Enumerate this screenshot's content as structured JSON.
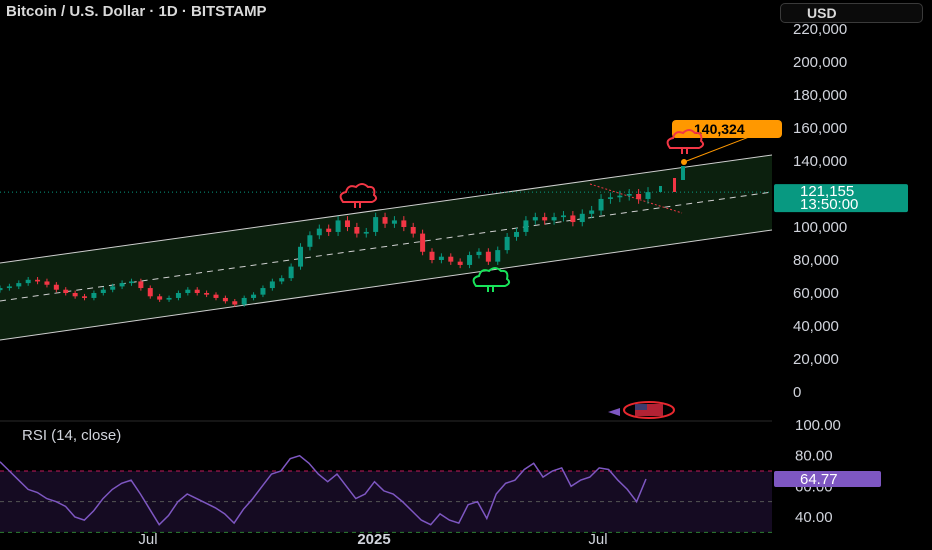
{
  "header": {
    "title": "Bitcoin / U.S. Dollar · 1D · BITSTAMP",
    "currency": "USD"
  },
  "colors": {
    "up": "#089981",
    "down": "#f23645",
    "rsi_line": "#7e57c2",
    "channel_fill": "#0d2410",
    "target_label": "#ff9800",
    "price_badge": "#089981",
    "rsi_badge": "#7e57c2"
  },
  "price_panel": {
    "current_price": "121,155",
    "countdown": "13:50:00",
    "target_label": "140,324"
  },
  "rsi_panel": {
    "label": "RSI (14, close)",
    "current_value": "64.77",
    "y_ticks": [
      "100.00",
      "80.00",
      "60.00",
      "40.00"
    ]
  },
  "icons": [
    "bear-cloud-icon",
    "bear-cloud-icon",
    "bull-cloud-icon",
    "us-flag-icon"
  ],
  "chart_data": [
    {
      "type": "candlestick",
      "title": "Bitcoin / U.S. Dollar · 1D · BITSTAMP",
      "xlabel": "",
      "ylabel": "",
      "x_ticks": [
        "Jul",
        "2025",
        "Jul"
      ],
      "y_ticks": [
        220000,
        200000,
        180000,
        160000,
        140000,
        120000,
        100000,
        80000,
        60000,
        40000,
        20000,
        0
      ],
      "y_tick_labels": [
        "220,000",
        "200,000",
        "180,000",
        "160,000",
        "140,000",
        "120,000",
        "100,000",
        "80,000",
        "60,000",
        "40,000",
        "20,000",
        "0"
      ],
      "ylim": [
        0,
        220000
      ],
      "grid": false,
      "last_close": 121155,
      "target": 140324,
      "series": [
        {
          "values": [
            63000,
            64000,
            66000,
            68000,
            67000,
            65000,
            62000,
            60000,
            58000,
            57000,
            60000,
            62000,
            64000,
            66000,
            67000,
            63000,
            58000,
            56000,
            57000,
            60000,
            62000,
            60000,
            59000,
            57000,
            55000,
            53000,
            57000,
            59000,
            63000,
            67000,
            69000,
            76000,
            88000,
            95000,
            99000,
            97000,
            104000,
            100000,
            96000,
            97000,
            106000,
            102000,
            104000,
            100000,
            96000,
            85000,
            80000,
            82000,
            79000,
            77000,
            83000,
            85000,
            79000,
            86000,
            94000,
            97000,
            104000,
            106000,
            104000,
            106000,
            107000,
            103000,
            108000,
            110000,
            117000,
            118000,
            119000,
            120000,
            117000,
            121155
          ]
        }
      ],
      "annotations": [
        "bear-cloud-icon",
        "bear-cloud-icon",
        "bull-cloud-icon"
      ]
    },
    {
      "type": "line",
      "title": "RSI (14, close)",
      "xlabel": "",
      "ylabel": "",
      "ylim": [
        20,
        100
      ],
      "y_ticks": [
        100,
        80,
        60,
        40
      ],
      "bands": [
        70,
        50,
        30
      ],
      "last_value": 64.77,
      "series": [
        {
          "values": [
            76,
            70,
            64,
            58,
            56,
            52,
            50,
            47,
            40,
            38,
            44,
            52,
            58,
            62,
            64,
            55,
            45,
            35,
            41,
            50,
            55,
            52,
            49,
            46,
            42,
            36,
            45,
            52,
            60,
            68,
            70,
            78,
            80,
            75,
            68,
            63,
            68,
            60,
            52,
            55,
            63,
            57,
            55,
            50,
            44,
            38,
            35,
            42,
            38,
            36,
            48,
            50,
            39,
            55,
            62,
            64,
            71,
            75,
            66,
            70,
            72,
            60,
            64,
            66,
            72,
            71,
            64,
            58,
            50,
            64.77
          ]
        }
      ]
    }
  ]
}
